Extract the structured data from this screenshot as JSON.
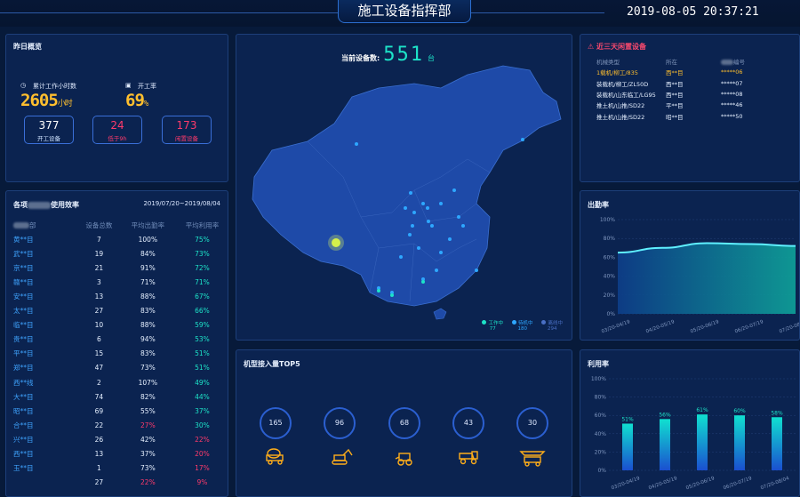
{
  "header": {
    "title": "施工设备指挥部",
    "datetime": "2019-08-05 20:37:21"
  },
  "overview": {
    "title": "昨日概览",
    "work_hours_label": "累计工作小时数",
    "work_hours": "2605",
    "work_hours_unit": "小时",
    "rate_label": "开工率",
    "rate": "69",
    "rate_unit": "%",
    "boxes": [
      {
        "value": "377",
        "label": "开工设备",
        "color": "#ffffff"
      },
      {
        "value": "24",
        "label": "低于9h",
        "color": "#ff3a6b"
      },
      {
        "value": "173",
        "label": "闲置设备",
        "color": "#ff3a6b"
      }
    ]
  },
  "efficiency": {
    "title_prefix": "各项",
    "title_suffix": "使用效率",
    "date_range": "2019/07/20~2019/08/04",
    "columns": [
      "部",
      "设备总数",
      "平均出勤率",
      "平均利用率"
    ],
    "rows": [
      [
        "黄**目",
        "7",
        "100%",
        "75%"
      ],
      [
        "武**目",
        "19",
        "84%",
        "73%"
      ],
      [
        "京**目",
        "21",
        "91%",
        "72%"
      ],
      [
        "赣**目",
        "3",
        "71%",
        "71%"
      ],
      [
        "安**目",
        "13",
        "88%",
        "67%"
      ],
      [
        "太**目",
        "27",
        "83%",
        "66%"
      ],
      [
        "临**目",
        "10",
        "88%",
        "59%"
      ],
      [
        "贵**目",
        "6",
        "94%",
        "53%"
      ],
      [
        "平**目",
        "15",
        "83%",
        "51%"
      ],
      [
        "郑**目",
        "47",
        "73%",
        "51%"
      ],
      [
        "西**线",
        "2",
        "107%",
        "49%"
      ],
      [
        "大**目",
        "74",
        "82%",
        "44%"
      ],
      [
        "昭**目",
        "69",
        "55%",
        "37%"
      ],
      [
        "合**目",
        "22",
        "27%",
        "30%"
      ],
      [
        "兴**目",
        "26",
        "42%",
        "22%"
      ],
      [
        "西**目",
        "13",
        "37%",
        "20%"
      ],
      [
        "玉**目",
        "1",
        "73%",
        "17%"
      ],
      [
        "",
        "27",
        "22%",
        "9%"
      ]
    ],
    "red_cells": [
      [
        13,
        2
      ],
      [
        14,
        3
      ],
      [
        15,
        3
      ],
      [
        16,
        3
      ],
      [
        17,
        2
      ],
      [
        17,
        3
      ]
    ]
  },
  "map": {
    "count_label": "当前设备数:",
    "count": "551",
    "count_unit": "台",
    "legend": [
      {
        "label": "工作中",
        "value": "77",
        "color": "#1de3c8"
      },
      {
        "label": "待机中",
        "value": "180",
        "color": "#2ea7ff"
      },
      {
        "label": "离线中",
        "value": "294",
        "color": "#4a6fc4"
      }
    ]
  },
  "idle": {
    "title": "近三天闲置设备",
    "columns": [
      "机械类型",
      "所在",
      "编号"
    ],
    "rows": [
      [
        "1载机/柳工/835",
        "西**目",
        "*****06"
      ],
      [
        "装载机/柳工/ZL50D",
        "西**目",
        "*****07"
      ],
      [
        "装载机/山东临工/LG95",
        "西**目",
        "*****08"
      ],
      [
        "推土机/山推/SD22",
        "平**目",
        "*****46"
      ],
      [
        "推土机/山推/SD22",
        "昭**目",
        "*****50"
      ]
    ]
  },
  "top5": {
    "title": "机型接入量TOP5",
    "items": [
      {
        "value": "165",
        "icon": "concrete-mixer-icon"
      },
      {
        "value": "96",
        "icon": "excavator-icon"
      },
      {
        "value": "68",
        "icon": "loader-icon"
      },
      {
        "value": "43",
        "icon": "dump-truck-icon"
      },
      {
        "value": "30",
        "icon": "crane-icon"
      }
    ]
  },
  "colors": {
    "accent": "#1de3c8",
    "orange": "#ffbf2e",
    "red": "#ff3a6b"
  },
  "chart_data": [
    {
      "type": "area",
      "title": "出勤率",
      "categories": [
        "03/20-04/19",
        "04/20-05/19",
        "05/20-06/19",
        "06/20-07/19",
        "07/20-08/04"
      ],
      "values": [
        65,
        70,
        75,
        74,
        72
      ],
      "ylim": [
        0,
        100
      ],
      "yticks": [
        "0%",
        "20%",
        "40%",
        "60%",
        "80%",
        "100%"
      ]
    },
    {
      "type": "bar",
      "title": "利用率",
      "categories": [
        "03/20-04/19",
        "04/20-05/19",
        "05/20-06/19",
        "06/20-07/19",
        "07/20-08/04"
      ],
      "values": [
        51,
        56,
        61,
        60,
        58
      ],
      "labels": [
        "51%",
        "56%",
        "61%",
        "60%",
        "58%"
      ],
      "ylim": [
        0,
        100
      ],
      "yticks": [
        "0%",
        "20%",
        "40%",
        "60%",
        "80%",
        "100%"
      ]
    }
  ]
}
